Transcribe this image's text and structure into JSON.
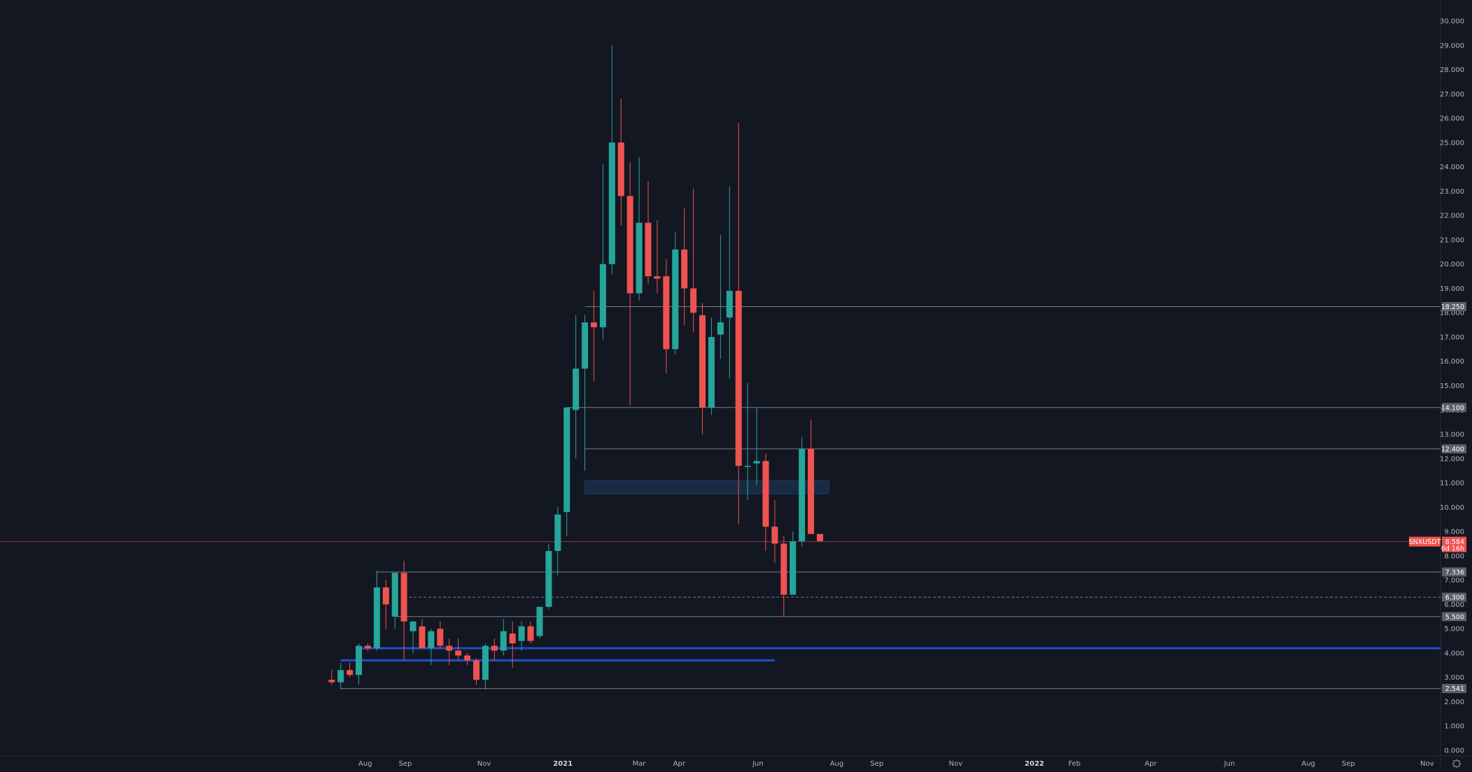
{
  "colors": {
    "background": "#131722",
    "up": "#26a69a",
    "down": "#ef5350",
    "axis_text": "#b2b5be",
    "level_line": "#8a8f9c",
    "support_line": "#2962ff",
    "zone": "#1e3a5f",
    "last_price_line": "#ef5350"
  },
  "symbol": {
    "ticker": "SNXUSDT",
    "last_price": "8.584",
    "countdown": "6d 16h"
  },
  "icons": {
    "settings": "gear-icon"
  },
  "chart_data": {
    "type": "candlestick",
    "interval": "1W",
    "y_axis": {
      "min": 0,
      "max": 30,
      "ticks": [
        "0.000",
        "1.000",
        "2.000",
        "3.000",
        "4.000",
        "5.000",
        "6.000",
        "7.000",
        "8.000",
        "9.000",
        "10.000",
        "11.000",
        "12.000",
        "13.000",
        "14.000",
        "15.000",
        "16.000",
        "17.000",
        "18.000",
        "19.000",
        "20.000",
        "21.000",
        "22.000",
        "23.000",
        "24.000",
        "25.000",
        "26.000",
        "27.000",
        "28.000",
        "29.000",
        "30.000"
      ]
    },
    "x_axis": {
      "range": [
        "2020-06-22",
        "2022-11-07"
      ],
      "ticks": [
        {
          "date": "2020-08-01",
          "label": "Aug",
          "year": false
        },
        {
          "date": "2020-09-01",
          "label": "Sep",
          "year": false
        },
        {
          "date": "2020-11-01",
          "label": "Nov",
          "year": false
        },
        {
          "date": "2021-01-01",
          "label": "2021",
          "year": true
        },
        {
          "date": "2021-03-01",
          "label": "Mar",
          "year": false
        },
        {
          "date": "2021-04-01",
          "label": "Apr",
          "year": false
        },
        {
          "date": "2021-06-01",
          "label": "Jun",
          "year": false
        },
        {
          "date": "2021-08-01",
          "label": "Aug",
          "year": false
        },
        {
          "date": "2021-09-01",
          "label": "Sep",
          "year": false
        },
        {
          "date": "2021-11-01",
          "label": "Nov",
          "year": false
        },
        {
          "date": "2022-01-01",
          "label": "2022",
          "year": true
        },
        {
          "date": "2022-02-01",
          "label": "Feb",
          "year": false
        },
        {
          "date": "2022-04-01",
          "label": "Apr",
          "year": false
        },
        {
          "date": "2022-06-01",
          "label": "Jun",
          "year": false
        },
        {
          "date": "2022-08-01",
          "label": "Aug",
          "year": false
        },
        {
          "date": "2022-09-01",
          "label": "Sep",
          "year": false
        },
        {
          "date": "2022-11-01",
          "label": "Nov",
          "year": false
        }
      ]
    },
    "candles": [
      {
        "date": "2020-07-06",
        "o": 2.9,
        "h": 3.3,
        "l": 2.7,
        "c": 2.8
      },
      {
        "date": "2020-07-13",
        "o": 2.8,
        "h": 3.6,
        "l": 2.5,
        "c": 3.3
      },
      {
        "date": "2020-07-20",
        "o": 3.3,
        "h": 3.6,
        "l": 3.0,
        "c": 3.1
      },
      {
        "date": "2020-07-27",
        "o": 3.1,
        "h": 4.4,
        "l": 2.7,
        "c": 4.3
      },
      {
        "date": "2020-08-03",
        "o": 4.3,
        "h": 4.4,
        "l": 4.1,
        "c": 4.2
      },
      {
        "date": "2020-08-10",
        "o": 4.2,
        "h": 7.4,
        "l": 4.1,
        "c": 6.7
      },
      {
        "date": "2020-08-17",
        "o": 6.7,
        "h": 7.0,
        "l": 5.0,
        "c": 6.0
      },
      {
        "date": "2020-08-24",
        "o": 5.5,
        "h": 7.3,
        "l": 5.0,
        "c": 7.3
      },
      {
        "date": "2020-08-31",
        "o": 7.3,
        "h": 7.8,
        "l": 3.7,
        "c": 5.3
      },
      {
        "date": "2020-09-07",
        "o": 4.9,
        "h": 5.3,
        "l": 4.0,
        "c": 5.3
      },
      {
        "date": "2020-09-14",
        "o": 5.1,
        "h": 5.4,
        "l": 4.2,
        "c": 4.2
      },
      {
        "date": "2020-09-21",
        "o": 4.2,
        "h": 5.0,
        "l": 3.5,
        "c": 4.9
      },
      {
        "date": "2020-09-28",
        "o": 5.0,
        "h": 5.3,
        "l": 4.2,
        "c": 4.3
      },
      {
        "date": "2020-10-05",
        "o": 4.3,
        "h": 4.6,
        "l": 3.5,
        "c": 4.1
      },
      {
        "date": "2020-10-12",
        "o": 4.1,
        "h": 4.6,
        "l": 3.7,
        "c": 3.9
      },
      {
        "date": "2020-10-19",
        "o": 3.9,
        "h": 4.0,
        "l": 3.5,
        "c": 3.7
      },
      {
        "date": "2020-10-26",
        "o": 3.7,
        "h": 3.8,
        "l": 2.7,
        "c": 2.9
      },
      {
        "date": "2020-11-02",
        "o": 2.9,
        "h": 4.4,
        "l": 2.5,
        "c": 4.3
      },
      {
        "date": "2020-11-09",
        "o": 4.3,
        "h": 4.6,
        "l": 3.7,
        "c": 4.1
      },
      {
        "date": "2020-11-16",
        "o": 4.1,
        "h": 5.4,
        "l": 3.9,
        "c": 4.9
      },
      {
        "date": "2020-11-23",
        "o": 4.8,
        "h": 5.3,
        "l": 3.4,
        "c": 4.4
      },
      {
        "date": "2020-11-30",
        "o": 4.5,
        "h": 5.3,
        "l": 4.1,
        "c": 5.1
      },
      {
        "date": "2020-12-07",
        "o": 5.1,
        "h": 5.3,
        "l": 4.4,
        "c": 4.5
      },
      {
        "date": "2020-12-14",
        "o": 4.7,
        "h": 5.9,
        "l": 4.6,
        "c": 5.9
      },
      {
        "date": "2020-12-21",
        "o": 5.9,
        "h": 8.5,
        "l": 5.8,
        "c": 8.2
      },
      {
        "date": "2020-12-28",
        "o": 8.2,
        "h": 10.0,
        "l": 7.2,
        "c": 9.7
      },
      {
        "date": "2021-01-04",
        "o": 9.8,
        "h": 14.1,
        "l": 8.8,
        "c": 14.1
      },
      {
        "date": "2021-01-11",
        "o": 14.0,
        "h": 17.9,
        "l": 12.0,
        "c": 15.7
      },
      {
        "date": "2021-01-18",
        "o": 15.7,
        "h": 17.9,
        "l": 11.5,
        "c": 17.6
      },
      {
        "date": "2021-01-25",
        "o": 17.6,
        "h": 18.9,
        "l": 15.2,
        "c": 17.4
      },
      {
        "date": "2021-02-01",
        "o": 17.4,
        "h": 24.1,
        "l": 16.9,
        "c": 20.0
      },
      {
        "date": "2021-02-08",
        "o": 20.0,
        "h": 29.0,
        "l": 19.6,
        "c": 25.0
      },
      {
        "date": "2021-02-15",
        "o": 25.0,
        "h": 26.8,
        "l": 21.6,
        "c": 22.8
      },
      {
        "date": "2021-02-22",
        "o": 22.8,
        "h": 24.2,
        "l": 14.2,
        "c": 18.8
      },
      {
        "date": "2021-03-01",
        "o": 18.8,
        "h": 24.4,
        "l": 18.5,
        "c": 21.7
      },
      {
        "date": "2021-03-08",
        "o": 21.7,
        "h": 23.4,
        "l": 19.2,
        "c": 19.5
      },
      {
        "date": "2021-03-15",
        "o": 19.5,
        "h": 21.8,
        "l": 18.8,
        "c": 19.4
      },
      {
        "date": "2021-03-22",
        "o": 19.5,
        "h": 20.2,
        "l": 15.5,
        "c": 16.5
      },
      {
        "date": "2021-03-29",
        "o": 16.5,
        "h": 21.3,
        "l": 16.3,
        "c": 20.6
      },
      {
        "date": "2021-04-05",
        "o": 20.6,
        "h": 22.3,
        "l": 17.5,
        "c": 19.0
      },
      {
        "date": "2021-04-12",
        "o": 19.0,
        "h": 23.1,
        "l": 17.2,
        "c": 18.0
      },
      {
        "date": "2021-04-19",
        "o": 17.9,
        "h": 18.4,
        "l": 13.0,
        "c": 14.1
      },
      {
        "date": "2021-04-26",
        "o": 14.1,
        "h": 17.8,
        "l": 13.8,
        "c": 17.0
      },
      {
        "date": "2021-05-03",
        "o": 17.1,
        "h": 21.2,
        "l": 16.1,
        "c": 17.6
      },
      {
        "date": "2021-05-10",
        "o": 17.8,
        "h": 23.2,
        "l": 15.3,
        "c": 18.9
      },
      {
        "date": "2021-05-17",
        "o": 18.9,
        "h": 25.8,
        "l": 9.3,
        "c": 11.7
      },
      {
        "date": "2021-05-24",
        "o": 11.7,
        "h": 15.1,
        "l": 10.3,
        "c": 11.7
      },
      {
        "date": "2021-05-31",
        "o": 11.8,
        "h": 14.1,
        "l": 10.9,
        "c": 11.9
      },
      {
        "date": "2021-06-07",
        "o": 11.9,
        "h": 12.2,
        "l": 8.2,
        "c": 9.2
      },
      {
        "date": "2021-06-14",
        "o": 9.2,
        "h": 10.3,
        "l": 7.7,
        "c": 8.5
      },
      {
        "date": "2021-06-21",
        "o": 8.5,
        "h": 8.8,
        "l": 5.5,
        "c": 6.4
      },
      {
        "date": "2021-06-28",
        "o": 6.4,
        "h": 9.0,
        "l": 6.4,
        "c": 8.6
      },
      {
        "date": "2021-07-05",
        "o": 8.6,
        "h": 12.9,
        "l": 8.4,
        "c": 12.4
      },
      {
        "date": "2021-07-12",
        "o": 12.4,
        "h": 13.6,
        "l": 8.9,
        "c": 8.9
      },
      {
        "date": "2021-07-19",
        "o": 8.9,
        "h": 8.9,
        "l": 8.6,
        "c": 8.6
      }
    ],
    "horizontal_levels": [
      {
        "value": 18.25,
        "label": "18.250",
        "style": "solid",
        "from": "2021-01-18"
      },
      {
        "value": 14.1,
        "label": "14.100",
        "style": "solid",
        "from": "2021-01-04"
      },
      {
        "value": 12.4,
        "label": "12.400",
        "style": "solid",
        "from": "2021-01-18"
      },
      {
        "value": 7.336,
        "label": "7.336",
        "style": "solid",
        "from": "2020-08-10"
      },
      {
        "value": 6.3,
        "label": "6.300",
        "style": "dashed",
        "from": "2020-08-31"
      },
      {
        "value": 5.5,
        "label": "5.500",
        "style": "solid",
        "from": "2020-08-24"
      },
      {
        "value": 2.541,
        "label": "2.541",
        "style": "solid",
        "from": "2020-07-13"
      }
    ],
    "support_lines": [
      {
        "value": 4.2,
        "from": "2020-07-27",
        "to": "end"
      },
      {
        "value": 3.7,
        "from": "2020-07-13",
        "to": "2021-06-14"
      }
    ],
    "zone": {
      "from": "2021-01-18",
      "to": "2021-07-26",
      "low": 10.55,
      "high": 11.1
    },
    "last_price": 8.584
  }
}
